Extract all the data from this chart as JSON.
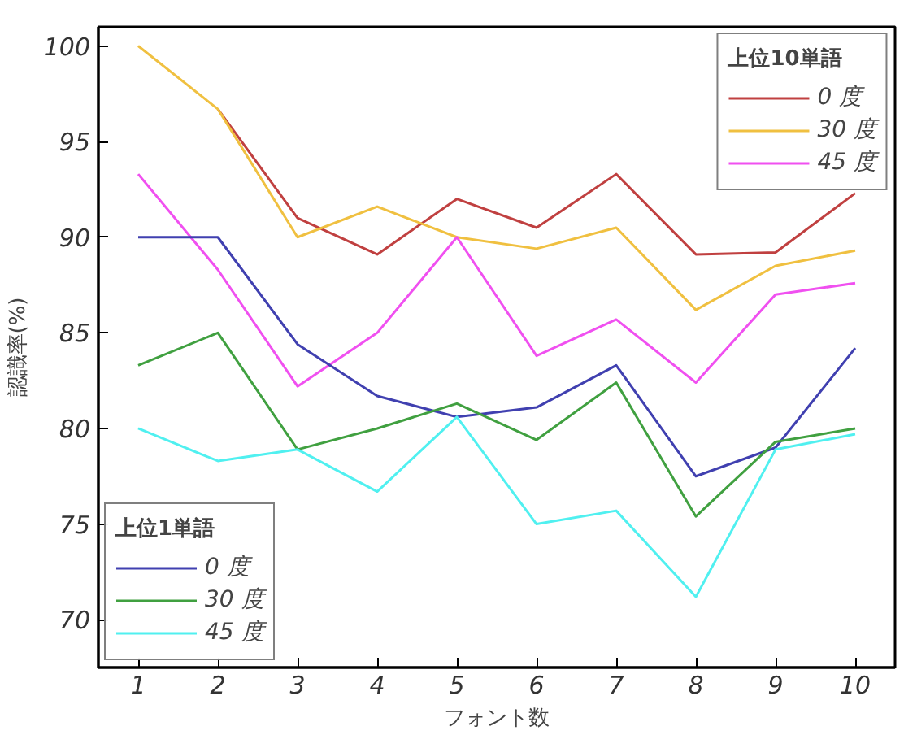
{
  "chart_data": {
    "type": "line",
    "xlabel": "フォント数",
    "ylabel": "認識率(%)",
    "x": [
      1,
      2,
      3,
      4,
      5,
      6,
      7,
      8,
      9,
      10
    ],
    "xlim": [
      0.5,
      10.5
    ],
    "ylim": [
      67.5,
      101
    ],
    "xticks": [
      1,
      2,
      3,
      4,
      5,
      6,
      7,
      8,
      9,
      10
    ],
    "yticks": [
      70,
      75,
      80,
      85,
      90,
      95,
      100
    ],
    "grid": false,
    "legend": [
      "top right",
      "bottom left"
    ],
    "legend_title": [
      "上位10単語",
      "上位1単語"
    ],
    "series": [
      {
        "name": "0 度",
        "color": "#c04040",
        "values": [
          null,
          96.7,
          91,
          89.1,
          92,
          90.5,
          93.3,
          89.1,
          89.2,
          92.3
        ]
      },
      {
        "name": "30 度",
        "color": "#f0c040",
        "values": [
          100,
          96.7,
          90,
          91.6,
          90,
          89.4,
          90.5,
          86.2,
          88.5,
          89.3
        ]
      },
      {
        "name": "45 度",
        "color": "#f050f0",
        "values": [
          93.3,
          88.3,
          82.2,
          85,
          90,
          83.8,
          85.7,
          82.4,
          87,
          87.6
        ]
      },
      {
        "name": "0 度",
        "color": "#4040b0",
        "values": [
          90,
          90,
          84.4,
          81.7,
          80.6,
          81.1,
          83.3,
          77.5,
          79,
          84.2
        ]
      },
      {
        "name": "30 度",
        "color": "#40a040",
        "values": [
          83.3,
          85,
          78.9,
          80,
          81.3,
          79.4,
          82.4,
          75.4,
          79.3,
          80
        ]
      },
      {
        "name": "45 度",
        "color": "#50f0f0",
        "values": [
          80,
          78.3,
          78.9,
          76.7,
          80.6,
          75,
          75.7,
          71.2,
          78.9,
          79.7
        ]
      }
    ]
  }
}
